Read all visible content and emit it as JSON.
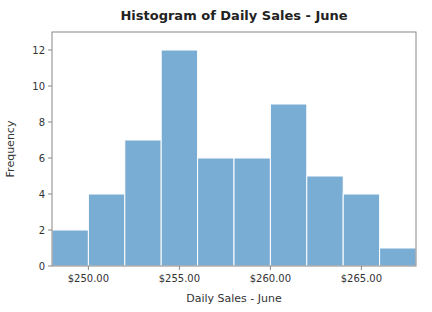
{
  "chart_data": {
    "type": "histogram",
    "title": "Histogram of Daily Sales - June",
    "xlabel": "Daily Sales - June",
    "ylabel": "Frequency",
    "bins": [
      248,
      250,
      252,
      254,
      256,
      258,
      260,
      262,
      264,
      266,
      268
    ],
    "values": [
      2,
      4,
      7,
      12,
      6,
      6,
      9,
      5,
      4,
      1
    ],
    "color": "#7aadd4",
    "xlim": [
      248,
      268
    ],
    "xticks": [
      {
        "value": 250,
        "label": "$250.00"
      },
      {
        "value": 255,
        "label": "$255.00"
      },
      {
        "value": 260,
        "label": "$260.00"
      },
      {
        "value": 265,
        "label": "$265.00"
      }
    ],
    "ylim": [
      0,
      13
    ],
    "yticks": [
      0,
      2,
      4,
      6,
      8,
      10,
      12
    ],
    "grid": false
  }
}
